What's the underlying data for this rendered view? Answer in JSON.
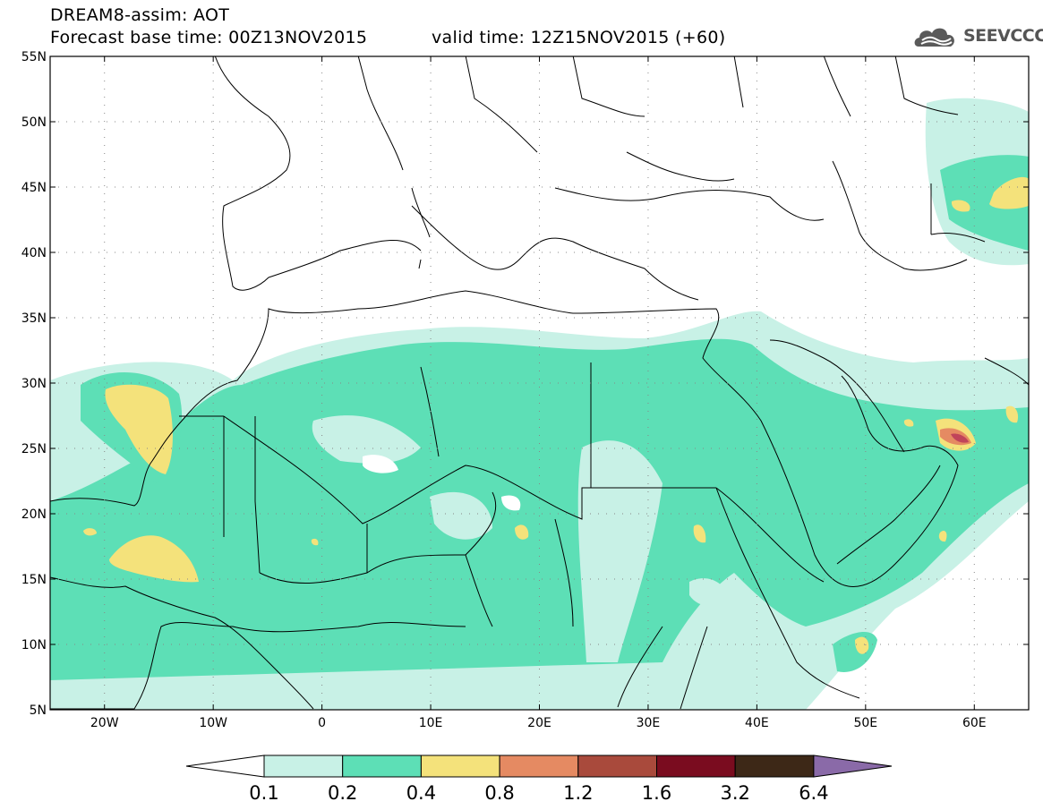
{
  "header": {
    "title": "DREAM8-assim: AOT",
    "base_time": "Forecast base time: 00Z13NOV2015",
    "valid_time": "valid time: 12Z15NOV2015 (+60)",
    "logo_text": "SEEVCCC"
  },
  "map": {
    "lon_range": [
      -25,
      65
    ],
    "lat_range": [
      5,
      55
    ],
    "lat_labels": [
      "55N",
      "50N",
      "45N",
      "40N",
      "35N",
      "30N",
      "25N",
      "20N",
      "15N",
      "10N",
      "5N"
    ],
    "lon_labels": [
      "20W",
      "10W",
      "0",
      "10E",
      "20E",
      "30E",
      "40E",
      "50E",
      "60E"
    ],
    "gridlines": "dotted"
  },
  "colorbar": {
    "labels": [
      "0.1",
      "0.2",
      "0.4",
      "0.8",
      "1.2",
      "1.6",
      "3.2",
      "6.4"
    ],
    "colors": [
      "#ffffff",
      "#c8f1e6",
      "#5ddfb6",
      "#f4e27b",
      "#e58a62",
      "#a94a3c",
      "#7a0c1f",
      "#3d2817",
      "#8a6aa8"
    ]
  }
}
